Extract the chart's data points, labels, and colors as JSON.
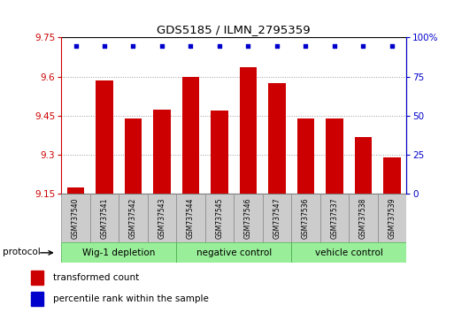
{
  "title": "GDS5185 / ILMN_2795359",
  "samples": [
    "GSM737540",
    "GSM737541",
    "GSM737542",
    "GSM737543",
    "GSM737544",
    "GSM737545",
    "GSM737546",
    "GSM737547",
    "GSM737536",
    "GSM737537",
    "GSM737538",
    "GSM737539"
  ],
  "bar_values": [
    9.175,
    9.585,
    9.44,
    9.475,
    9.6,
    9.47,
    9.635,
    9.575,
    9.44,
    9.44,
    9.37,
    9.29
  ],
  "percentile_values": [
    100,
    100,
    100,
    100,
    100,
    100,
    100,
    100,
    100,
    100,
    100,
    100
  ],
  "ylim_left": [
    9.15,
    9.75
  ],
  "ylim_right": [
    0,
    100
  ],
  "yticks_left": [
    9.15,
    9.3,
    9.45,
    9.6,
    9.75
  ],
  "yticks_right": [
    0,
    25,
    50,
    75,
    100
  ],
  "ytick_labels_left": [
    "9.15",
    "9.3",
    "9.45",
    "9.6",
    "9.75"
  ],
  "ytick_labels_right": [
    "0",
    "25",
    "50",
    "75",
    "100%"
  ],
  "bar_color": "#cc0000",
  "dot_color": "#0000cc",
  "bar_width": 0.6,
  "grid_color": "#999999",
  "groups": [
    {
      "label": "Wig-1 depletion",
      "start": 0,
      "end": 3
    },
    {
      "label": "negative control",
      "start": 4,
      "end": 7
    },
    {
      "label": "vehicle control",
      "start": 8,
      "end": 11
    }
  ],
  "group_color": "#99ee99",
  "sample_box_color": "#cccccc",
  "legend_red_label": "transformed count",
  "legend_blue_label": "percentile rank within the sample",
  "protocol_label": "protocol"
}
